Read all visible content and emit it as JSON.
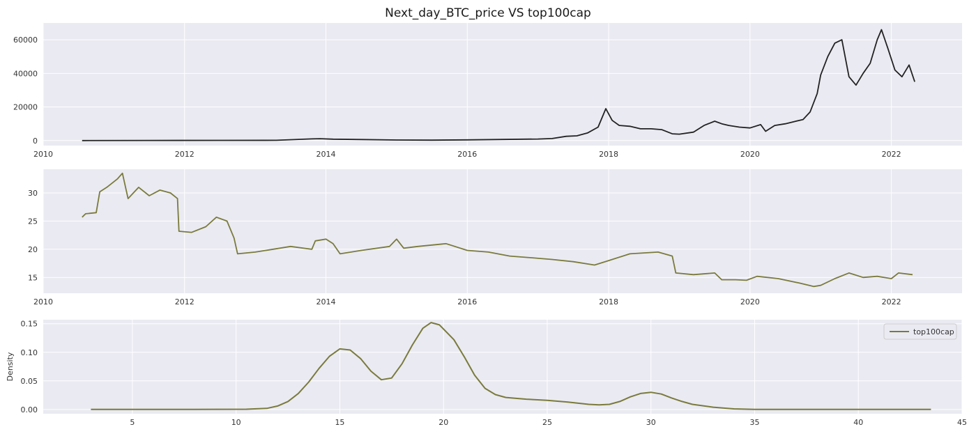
{
  "figure": {
    "title": "Next_day_BTC_price VS top100cap"
  },
  "chart_data": [
    {
      "type": "line",
      "title": "Next_day_BTC_price VS top100cap",
      "xlabel": "",
      "ylabel": "",
      "x_axis": "date",
      "xlim": [
        2010.0,
        2023.0
      ],
      "ylim": [
        -3000,
        70000
      ],
      "xticks": [
        2010,
        2012,
        2014,
        2016,
        2018,
        2020,
        2022
      ],
      "yticks": [
        0,
        20000,
        40000,
        60000
      ],
      "grid": true,
      "color": "#222222",
      "series": [
        {
          "x": [
            2010.55,
            2011.5,
            2012.5,
            2013.3,
            2013.8,
            2013.92,
            2014.1,
            2014.5,
            2015.0,
            2015.5,
            2016.0,
            2016.5,
            2017.0,
            2017.2,
            2017.4,
            2017.55,
            2017.7,
            2017.85,
            2017.96,
            2018.05,
            2018.15,
            2018.3,
            2018.45,
            2018.6,
            2018.75,
            2018.9,
            2019.0,
            2019.2,
            2019.35,
            2019.5,
            2019.6,
            2019.7,
            2019.85,
            2020.0,
            2020.15,
            2020.22,
            2020.35,
            2020.5,
            2020.6,
            2020.75,
            2020.85,
            2020.95,
            2021.0,
            2021.1,
            2021.2,
            2021.3,
            2021.4,
            2021.5,
            2021.6,
            2021.7,
            2021.8,
            2021.86,
            2021.95,
            2022.05,
            2022.15,
            2022.25,
            2022.33
          ],
          "y": [
            0,
            50,
            100,
            150,
            1000,
            1100,
            800,
            600,
            300,
            250,
            400,
            650,
            900,
            1200,
            2500,
            2800,
            4500,
            8000,
            19000,
            12000,
            9000,
            8500,
            7000,
            7000,
            6500,
            4000,
            3800,
            5000,
            9000,
            11500,
            10000,
            9000,
            8000,
            7500,
            9500,
            5500,
            9000,
            10000,
            11000,
            12500,
            17000,
            28000,
            39000,
            50000,
            58000,
            60000,
            38000,
            33000,
            40000,
            46000,
            60000,
            66000,
            55000,
            42000,
            38000,
            45000,
            35000
          ]
        }
      ]
    },
    {
      "type": "line",
      "title": "",
      "xlabel": "",
      "ylabel": "",
      "x_axis": "date",
      "xlim": [
        2010.0,
        2023.0
      ],
      "ylim": [
        12.2,
        34.2
      ],
      "xticks": [
        2010,
        2012,
        2014,
        2016,
        2018,
        2020,
        2022
      ],
      "yticks": [
        15,
        20,
        25,
        30
      ],
      "grid": true,
      "color": "#7a7a3c",
      "series": [
        {
          "x": [
            2010.55,
            2010.6,
            2010.75,
            2010.8,
            2010.9,
            2011.05,
            2011.12,
            2011.2,
            2011.35,
            2011.5,
            2011.65,
            2011.8,
            2011.9,
            2011.92,
            2012.1,
            2012.3,
            2012.45,
            2012.6,
            2012.7,
            2012.75,
            2013.0,
            2013.5,
            2013.8,
            2013.85,
            2014.0,
            2014.1,
            2014.2,
            2014.5,
            2014.9,
            2015.0,
            2015.1,
            2015.3,
            2015.7,
            2016.0,
            2016.3,
            2016.6,
            2016.9,
            2017.2,
            2017.5,
            2017.8,
            2018.0,
            2018.3,
            2018.7,
            2018.9,
            2018.95,
            2019.2,
            2019.5,
            2019.6,
            2019.8,
            2019.95,
            2020.1,
            2020.4,
            2020.7,
            2020.9,
            2021.0,
            2021.2,
            2021.4,
            2021.6,
            2021.8,
            2022.0,
            2022.1,
            2022.3
          ],
          "y": [
            25.7,
            26.3,
            26.5,
            30.2,
            31.0,
            32.5,
            33.5,
            29.0,
            31.0,
            29.5,
            30.5,
            30.0,
            29.0,
            23.2,
            23.0,
            24.0,
            25.7,
            25.0,
            22.0,
            19.2,
            19.5,
            20.5,
            20.0,
            21.5,
            21.8,
            21.0,
            19.2,
            19.8,
            20.5,
            21.8,
            20.2,
            20.5,
            21.0,
            19.8,
            19.5,
            18.8,
            18.5,
            18.2,
            17.8,
            17.2,
            18.0,
            19.2,
            19.5,
            18.8,
            15.8,
            15.5,
            15.8,
            14.6,
            14.6,
            14.5,
            15.2,
            14.8,
            14.0,
            13.4,
            13.6,
            14.8,
            15.8,
            15.0,
            15.2,
            14.8,
            15.8,
            15.5
          ]
        }
      ]
    },
    {
      "type": "line",
      "title": "",
      "xlabel": "",
      "ylabel": "Density",
      "xlim": [
        0.7,
        45.0
      ],
      "ylim": [
        -0.0075,
        0.157
      ],
      "xticks": [
        5,
        10,
        15,
        20,
        25,
        30,
        35,
        40,
        45
      ],
      "yticks": [
        0.0,
        0.05,
        0.1,
        0.15
      ],
      "ytick_labels": [
        "0.00",
        "0.05",
        "0.10",
        "0.15"
      ],
      "grid": true,
      "legend": "top-right",
      "color": "#7a7a3c",
      "series": [
        {
          "name": "top100cap",
          "x": [
            3.0,
            8.0,
            10.5,
            11.5,
            12.0,
            12.5,
            13.0,
            13.5,
            14.0,
            14.5,
            15.0,
            15.5,
            16.0,
            16.5,
            17.0,
            17.5,
            18.0,
            18.5,
            19.0,
            19.4,
            19.8,
            20.5,
            21.0,
            21.5,
            22.0,
            22.5,
            23.0,
            24.0,
            25.0,
            26.0,
            27.0,
            27.5,
            28.0,
            28.5,
            29.0,
            29.5,
            30.0,
            30.5,
            31.0,
            31.5,
            32.0,
            33.0,
            34.0,
            35.0,
            38.0,
            43.5
          ],
          "y": [
            0.0,
            0.0,
            0.0004,
            0.002,
            0.006,
            0.014,
            0.028,
            0.048,
            0.072,
            0.093,
            0.106,
            0.104,
            0.089,
            0.067,
            0.052,
            0.055,
            0.08,
            0.113,
            0.142,
            0.152,
            0.148,
            0.122,
            0.092,
            0.06,
            0.037,
            0.026,
            0.021,
            0.018,
            0.016,
            0.013,
            0.009,
            0.008,
            0.009,
            0.014,
            0.022,
            0.028,
            0.03,
            0.027,
            0.02,
            0.014,
            0.009,
            0.004,
            0.001,
            0.0,
            0.0,
            0.0
          ]
        }
      ]
    }
  ]
}
